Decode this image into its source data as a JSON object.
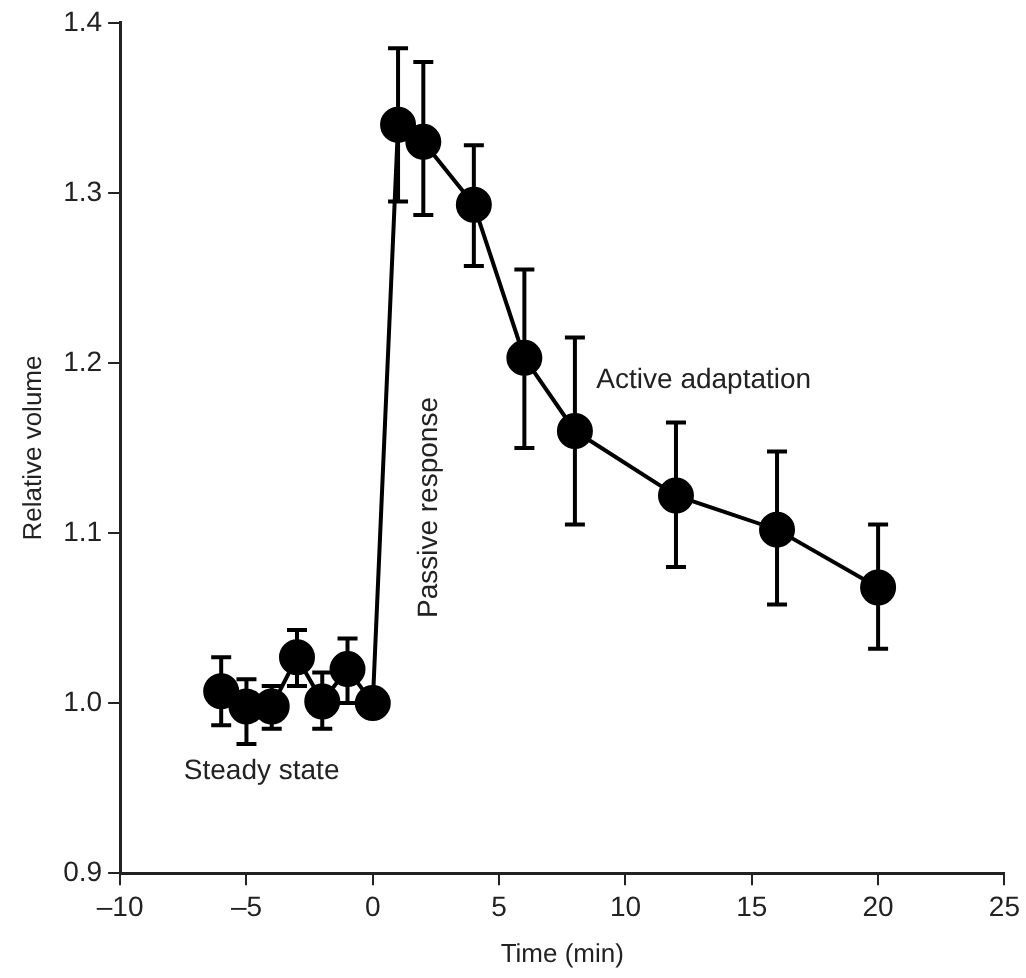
{
  "chart_data": {
    "type": "line",
    "xlabel": "Time (min)",
    "ylabel": "Relative volume",
    "x": [
      -6,
      -5,
      -4,
      -3,
      -2,
      -1,
      0,
      1,
      2,
      4,
      6,
      8,
      12,
      16,
      20
    ],
    "series": [
      {
        "color": "#000000",
        "values": [
          1.007,
          0.998,
          0.998,
          1.027,
          1.001,
          1.02,
          1.0,
          1.34,
          1.33,
          1.293,
          1.203,
          1.16,
          1.122,
          1.102,
          1.068
        ],
        "errors": [
          [
            0.987,
            1.027
          ],
          [
            0.976,
            1.014
          ],
          [
            0.985,
            1.01
          ],
          [
            1.01,
            1.043
          ],
          [
            0.985,
            1.018
          ],
          [
            1.0,
            1.038
          ],
          null,
          [
            1.295,
            1.385
          ],
          [
            1.287,
            1.377
          ],
          [
            1.257,
            1.328
          ],
          [
            1.15,
            1.255
          ],
          [
            1.105,
            1.215
          ],
          [
            1.08,
            1.165
          ],
          [
            1.058,
            1.148
          ],
          [
            1.032,
            1.105
          ]
        ]
      }
    ],
    "xlim": [
      -10,
      25
    ],
    "xticks": [
      {
        "value": -10,
        "label": "–10"
      },
      {
        "value": -5,
        "label": "–5"
      },
      0,
      5,
      10,
      15,
      20,
      25
    ],
    "ylim": [
      0.9,
      1.4
    ],
    "yticks": [
      {
        "value": 0.9,
        "label": "0.9"
      },
      {
        "value": 1.0,
        "label": "1.0"
      },
      {
        "value": 1.1,
        "label": "1.1"
      },
      {
        "value": 1.2,
        "label": "1.2"
      },
      {
        "value": 1.3,
        "label": "1.3"
      },
      {
        "value": 1.4,
        "label": "1.4"
      }
    ],
    "grid": false,
    "legend": false,
    "marker": "circle",
    "line_style": "solid",
    "annotations": [
      "Steady state",
      "Passive response",
      "Active adaptation"
    ]
  }
}
